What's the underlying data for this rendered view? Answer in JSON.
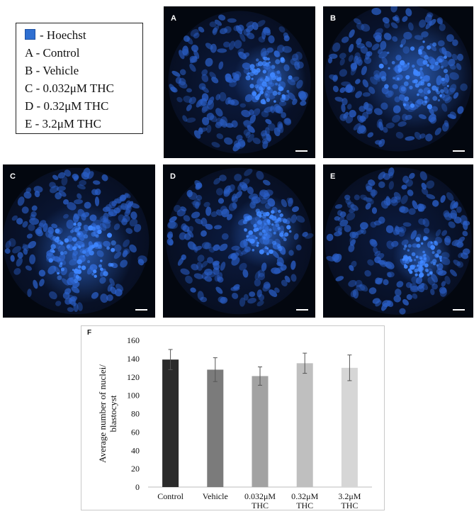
{
  "legend": {
    "items": [
      {
        "text": "- Hoechst",
        "swatch": "#2f6fd1"
      },
      {
        "text": "A - Control"
      },
      {
        "text": "B - Vehicle"
      },
      {
        "text": "C - 0.032μM THC"
      },
      {
        "text": "D - 0.32μM THC"
      },
      {
        "text": "E - 3.2μM THC"
      }
    ]
  },
  "panels": [
    {
      "letter": "A",
      "nuclei_color": "#2a5ec6",
      "cluster_color": "#3f86ff"
    },
    {
      "letter": "B",
      "nuclei_color": "#2a5ec6",
      "cluster_color": "#3f86ff"
    },
    {
      "letter": "C",
      "nuclei_color": "#2a5ec6",
      "cluster_color": "#3f86ff"
    },
    {
      "letter": "D",
      "nuclei_color": "#2a5ec6",
      "cluster_color": "#3f86ff"
    },
    {
      "letter": "E",
      "nuclei_color": "#2a5ec6",
      "cluster_color": "#3f86ff"
    }
  ],
  "chart_letter": "F",
  "chart_data": {
    "type": "bar",
    "ylabel": "Average number of nuclei/ blastocyst",
    "ylim": [
      0,
      160
    ],
    "yticks": [
      0,
      20,
      40,
      60,
      80,
      100,
      120,
      140,
      160
    ],
    "categories": [
      {
        "line1": "Control",
        "line2": ""
      },
      {
        "line1": "Vehicle",
        "line2": ""
      },
      {
        "line1": "0.032μM",
        "line2": "THC"
      },
      {
        "line1": "0.32μM",
        "line2": "THC"
      },
      {
        "line1": "3.2μM",
        "line2": "THC"
      }
    ],
    "values": [
      139,
      128,
      121,
      135,
      130
    ],
    "errors": [
      11,
      13,
      10,
      11,
      14
    ],
    "colors": [
      "#2b2b2b",
      "#7b7b7b",
      "#a2a2a2",
      "#bfbfbf",
      "#d6d6d6"
    ],
    "grid": false
  }
}
